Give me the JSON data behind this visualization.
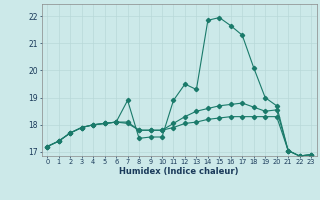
{
  "xlabel": "Humidex (Indice chaleur)",
  "xlim": [
    -0.5,
    23.5
  ],
  "ylim": [
    16.85,
    22.45
  ],
  "yticks": [
    17,
    18,
    19,
    20,
    21,
    22
  ],
  "xticks": [
    0,
    1,
    2,
    3,
    4,
    5,
    6,
    7,
    8,
    9,
    10,
    11,
    12,
    13,
    14,
    15,
    16,
    17,
    18,
    19,
    20,
    21,
    22,
    23
  ],
  "bg_color": "#cce9e9",
  "line_color": "#1a7a6a",
  "grid_color": "#b8d8d8",
  "line1_x": [
    0,
    1,
    2,
    3,
    4,
    5,
    6,
    7,
    8,
    9,
    10,
    11,
    12,
    13,
    14,
    15,
    16,
    17,
    18,
    19,
    20,
    21,
    22,
    23
  ],
  "line1_y": [
    17.2,
    17.4,
    17.7,
    17.9,
    18.0,
    18.05,
    18.1,
    18.9,
    17.5,
    17.55,
    17.55,
    18.9,
    19.5,
    19.3,
    21.85,
    21.95,
    21.65,
    21.3,
    20.1,
    19.0,
    18.7,
    17.05,
    16.85,
    16.9
  ],
  "line2_x": [
    0,
    1,
    2,
    3,
    4,
    5,
    6,
    7,
    8,
    9,
    10,
    11,
    12,
    13,
    14,
    15,
    16,
    17,
    18,
    19,
    20,
    21,
    22,
    23
  ],
  "line2_y": [
    17.2,
    17.4,
    17.7,
    17.9,
    18.0,
    18.05,
    18.1,
    18.1,
    17.8,
    17.8,
    17.8,
    18.05,
    18.3,
    18.5,
    18.6,
    18.7,
    18.75,
    18.8,
    18.65,
    18.5,
    18.55,
    17.05,
    16.85,
    16.9
  ],
  "line3_x": [
    0,
    1,
    2,
    3,
    4,
    5,
    6,
    7,
    8,
    9,
    10,
    11,
    12,
    13,
    14,
    15,
    16,
    17,
    18,
    19,
    20,
    21,
    22,
    23
  ],
  "line3_y": [
    17.2,
    17.4,
    17.7,
    17.9,
    18.0,
    18.05,
    18.1,
    18.05,
    17.8,
    17.8,
    17.8,
    17.9,
    18.05,
    18.1,
    18.2,
    18.25,
    18.3,
    18.3,
    18.3,
    18.3,
    18.3,
    17.05,
    16.85,
    16.9
  ]
}
